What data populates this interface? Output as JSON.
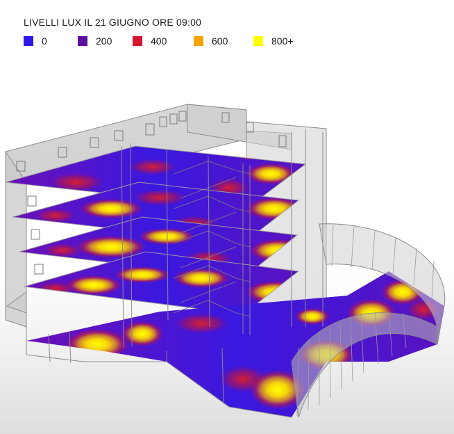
{
  "title": "LIVELLI LUX IL 21 GIUGNO ORE 09:00",
  "legend": [
    {
      "label": "0",
      "color": "#2f17e6"
    },
    {
      "label": "200",
      "color": "#5a0fa0"
    },
    {
      "label": "400",
      "color": "#d4152c"
    },
    {
      "label": "600",
      "color": "#f5a500"
    },
    {
      "label": "800+",
      "color": "#ffff00"
    }
  ]
}
